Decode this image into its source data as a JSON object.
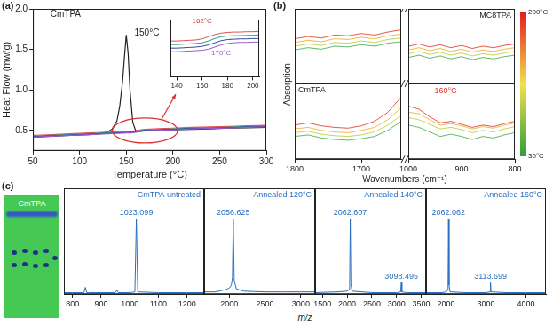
{
  "chart_data": [
    {
      "type": "line",
      "xlabel": "Temperature (°C)",
      "ylabel": "Heat Flow (mw/g)",
      "x": [
        50,
        60,
        70,
        80,
        90,
        100,
        110,
        120,
        125,
        130,
        135,
        140,
        143,
        146,
        148,
        150,
        152,
        154,
        157,
        160,
        165,
        170,
        180,
        190,
        200,
        220,
        240,
        260,
        280,
        300
      ],
      "series": [
        {
          "color": "#9b59d0",
          "values": [
            0.42,
            0.425,
            0.43,
            0.435,
            0.44,
            0.445,
            0.45,
            0.455,
            0.458,
            0.46,
            0.462,
            0.465,
            0.467,
            0.468,
            0.469,
            0.47,
            0.471,
            0.472,
            0.474,
            0.478,
            0.488,
            0.495,
            0.5,
            0.505,
            0.51,
            0.52,
            0.525,
            0.53,
            0.54,
            0.545
          ]
        },
        {
          "color": "#2b4c9b",
          "values": [
            0.425,
            0.43,
            0.435,
            0.44,
            0.445,
            0.45,
            0.455,
            0.46,
            0.463,
            0.465,
            0.467,
            0.47,
            0.472,
            0.473,
            0.474,
            0.475,
            0.476,
            0.477,
            0.479,
            0.483,
            0.493,
            0.5,
            0.505,
            0.51,
            0.515,
            0.525,
            0.53,
            0.535,
            0.545,
            0.55
          ]
        },
        {
          "color": "#2a9d8f",
          "values": [
            0.43,
            0.435,
            0.44,
            0.445,
            0.45,
            0.455,
            0.46,
            0.465,
            0.468,
            0.47,
            0.472,
            0.475,
            0.477,
            0.478,
            0.479,
            0.48,
            0.481,
            0.482,
            0.484,
            0.488,
            0.498,
            0.505,
            0.51,
            0.515,
            0.52,
            0.53,
            0.535,
            0.54,
            0.55,
            0.555
          ]
        },
        {
          "color": "#e05050",
          "values": [
            0.44,
            0.445,
            0.45,
            0.455,
            0.46,
            0.465,
            0.47,
            0.475,
            0.478,
            0.48,
            0.482,
            0.485,
            0.487,
            0.488,
            0.489,
            0.49,
            0.491,
            0.492,
            0.494,
            0.498,
            0.508,
            0.515,
            0.52,
            0.525,
            0.53,
            0.54,
            0.545,
            0.55,
            0.56,
            0.565
          ]
        },
        {
          "color": "#222222",
          "values": [
            0.42,
            0.425,
            0.43,
            0.435,
            0.44,
            0.445,
            0.45,
            0.46,
            0.47,
            0.48,
            0.52,
            0.62,
            0.8,
            1.1,
            1.4,
            1.68,
            1.45,
            1.0,
            0.6,
            0.5,
            0.49,
            0.5,
            0.5,
            0.505,
            0.51,
            0.515,
            0.52,
            0.53,
            0.535,
            0.54
          ]
        }
      ],
      "xlim": [
        50,
        300
      ],
      "xticks": [
        50,
        100,
        150,
        200,
        250,
        300
      ],
      "ylim": [
        0.25,
        2.0
      ],
      "yticks": [
        0.5,
        {
          "value": 1,
          "label": "1.0"
        },
        1.5,
        {
          "value": 2,
          "label": "2.0"
        }
      ],
      "annotations": [
        {
          "text": "CmTPA",
          "x": 85,
          "y": 1.85
        },
        {
          "text": "150°C",
          "x": 172,
          "y": 1.62
        }
      ]
    },
    {
      "type": "line",
      "x": [
        135,
        140,
        145,
        150,
        155,
        160,
        165,
        170,
        175,
        180,
        185,
        190,
        195,
        200,
        205
      ],
      "series": [
        {
          "color": "#e05050",
          "values": [
            0.52,
            0.52,
            0.521,
            0.522,
            0.523,
            0.526,
            0.532,
            0.538,
            0.542,
            0.544,
            0.545,
            0.545,
            0.546,
            0.546,
            0.547
          ]
        },
        {
          "color": "#2a9d8f",
          "values": [
            0.51,
            0.51,
            0.511,
            0.512,
            0.513,
            0.515,
            0.52,
            0.527,
            0.532,
            0.534,
            0.535,
            0.535,
            0.536,
            0.536,
            0.537
          ]
        },
        {
          "color": "#2b4c9b",
          "values": [
            0.5,
            0.5,
            0.501,
            0.502,
            0.503,
            0.505,
            0.509,
            0.515,
            0.521,
            0.524,
            0.525,
            0.526,
            0.526,
            0.527,
            0.527
          ]
        },
        {
          "color": "#9b59d0",
          "values": [
            0.49,
            0.49,
            0.491,
            0.492,
            0.493,
            0.494,
            0.497,
            0.503,
            0.509,
            0.513,
            0.515,
            0.516,
            0.516,
            0.517,
            0.517
          ]
        }
      ],
      "xlim": [
        135,
        205
      ],
      "xticks": [
        140,
        160,
        180,
        200
      ],
      "ylim": [
        0.42,
        0.58
      ],
      "tick_labels": "x",
      "annotations": [
        {
          "text": "162°C",
          "x": 160,
          "y": 0.56,
          "color": "#e03030"
        },
        {
          "text": "170°C",
          "x": 175,
          "y": 0.47,
          "color": "#9b59d0"
        }
      ]
    },
    {
      "type": "line",
      "x": [
        1800,
        1780,
        1760,
        1740,
        1720,
        1700,
        1680,
        1660,
        1640
      ],
      "series": [
        {
          "color": "#3aa845",
          "values": [
            0.45,
            0.48,
            0.46,
            0.5,
            0.49,
            0.52,
            0.5,
            0.54,
            0.56
          ]
        },
        {
          "color": "#b5cc2e",
          "values": [
            0.5,
            0.53,
            0.51,
            0.55,
            0.54,
            0.57,
            0.55,
            0.59,
            0.61
          ]
        },
        {
          "color": "#f2a81d",
          "values": [
            0.55,
            0.58,
            0.56,
            0.6,
            0.59,
            0.62,
            0.6,
            0.64,
            0.66
          ]
        },
        {
          "color": "#e0301e",
          "values": [
            0.6,
            0.63,
            0.61,
            0.65,
            0.64,
            0.67,
            0.65,
            0.69,
            0.72
          ]
        }
      ],
      "xlim": [
        1800,
        1640
      ],
      "ylim": [
        0,
        1
      ],
      "tick_labels": false
    },
    {
      "type": "line",
      "title": "MC8TPA",
      "x": [
        1000,
        980,
        960,
        940,
        920,
        900,
        880,
        860,
        840,
        820,
        800
      ],
      "series": [
        {
          "color": "#3aa845",
          "values": [
            0.35,
            0.38,
            0.34,
            0.37,
            0.33,
            0.36,
            0.32,
            0.35,
            0.33,
            0.36,
            0.38
          ]
        },
        {
          "color": "#b5cc2e",
          "values": [
            0.4,
            0.43,
            0.39,
            0.42,
            0.38,
            0.41,
            0.37,
            0.4,
            0.38,
            0.41,
            0.43
          ]
        },
        {
          "color": "#f2a81d",
          "values": [
            0.45,
            0.48,
            0.44,
            0.47,
            0.43,
            0.46,
            0.42,
            0.45,
            0.43,
            0.46,
            0.48
          ]
        },
        {
          "color": "#e0301e",
          "values": [
            0.5,
            0.53,
            0.49,
            0.52,
            0.48,
            0.51,
            0.47,
            0.5,
            0.48,
            0.51,
            0.53
          ]
        }
      ],
      "xlim": [
        1000,
        800
      ],
      "ylim": [
        0,
        1
      ],
      "tick_labels": false
    },
    {
      "type": "line",
      "title": "CmTPA",
      "x": [
        1800,
        1780,
        1760,
        1740,
        1720,
        1700,
        1680,
        1660,
        1640
      ],
      "series": [
        {
          "color": "#3aa845",
          "values": [
            0.3,
            0.32,
            0.28,
            0.26,
            0.25,
            0.27,
            0.3,
            0.38,
            0.5
          ]
        },
        {
          "color": "#b5cc2e",
          "values": [
            0.35,
            0.37,
            0.33,
            0.31,
            0.3,
            0.32,
            0.36,
            0.45,
            0.58
          ]
        },
        {
          "color": "#f2a81d",
          "values": [
            0.4,
            0.42,
            0.38,
            0.36,
            0.35,
            0.38,
            0.42,
            0.52,
            0.68
          ]
        },
        {
          "color": "#e0301e",
          "values": [
            0.45,
            0.48,
            0.44,
            0.42,
            0.41,
            0.44,
            0.5,
            0.62,
            0.82
          ]
        }
      ],
      "xlim": [
        1800,
        1640
      ],
      "xticks": [
        1800,
        1700
      ],
      "ylim": [
        0,
        1
      ],
      "tick_labels": "x"
    },
    {
      "type": "line",
      "x": [
        1000,
        980,
        960,
        940,
        920,
        900,
        880,
        860,
        840,
        820,
        800
      ],
      "series": [
        {
          "color": "#3aa845",
          "values": [
            0.45,
            0.42,
            0.36,
            0.3,
            0.33,
            0.3,
            0.26,
            0.3,
            0.28,
            0.32,
            0.35
          ]
        },
        {
          "color": "#b5cc2e",
          "values": [
            0.55,
            0.52,
            0.46,
            0.4,
            0.42,
            0.39,
            0.35,
            0.38,
            0.36,
            0.4,
            0.43
          ]
        },
        {
          "color": "#f2a81d",
          "values": [
            0.62,
            0.6,
            0.52,
            0.45,
            0.47,
            0.44,
            0.4,
            0.43,
            0.41,
            0.45,
            0.48
          ]
        },
        {
          "color": "#e0301e",
          "values": [
            0.7,
            0.66,
            0.56,
            0.48,
            0.5,
            0.46,
            0.42,
            0.45,
            0.43,
            0.47,
            0.5
          ]
        }
      ],
      "xlim": [
        1000,
        800
      ],
      "xticks": [
        1000,
        900,
        800
      ],
      "ylim": [
        0,
        1
      ],
      "tick_labels": "x",
      "annotations": [
        {
          "text": "160°C",
          "x": 930,
          "y": 0.82,
          "color": "#e03030"
        }
      ]
    },
    {
      "type": "line",
      "title": "CmTPA untreated",
      "color": "#2a6fc0",
      "x": [
        770,
        800,
        840,
        845,
        850,
        855,
        900,
        950,
        955,
        960,
        1000,
        1018,
        1023.099,
        1028,
        1100,
        1200,
        1260
      ],
      "values": [
        2,
        2,
        2,
        9,
        2,
        2,
        2,
        2,
        5,
        2,
        2,
        3,
        100,
        3,
        2,
        2,
        2
      ],
      "xlim": [
        770,
        1260
      ],
      "xticks": [
        800,
        900,
        1000,
        1100,
        1200
      ],
      "ylim": [
        0,
        140
      ],
      "tick_labels": "x",
      "annotations": [
        {
          "text": "1023.099",
          "x": 1023.099,
          "y": 100
        }
      ]
    },
    {
      "type": "line",
      "title": "Annealed 120°C",
      "color": "#2a6fc0",
      "x": [
        1650,
        1800,
        1900,
        1950,
        2000,
        2030,
        2045,
        2056.625,
        2070,
        2100,
        2200,
        2500,
        2800,
        3000,
        3200
      ],
      "values": [
        3,
        3,
        5,
        6,
        8,
        12,
        22,
        100,
        18,
        7,
        4,
        3,
        3,
        3,
        3
      ],
      "xlim": [
        1650,
        3200
      ],
      "xticks": [
        2000,
        2500,
        3000
      ],
      "ylim": [
        0,
        140
      ],
      "tick_labels": "x",
      "annotations": [
        {
          "text": "2056.625",
          "x": 2056.625,
          "y": 100
        }
      ]
    },
    {
      "type": "line",
      "title": "Annealed 140°C",
      "color": "#2a6fc0",
      "x": [
        1350,
        1800,
        2000,
        2040,
        2050,
        2062.607,
        2075,
        2100,
        2500,
        3000,
        3085,
        3098.495,
        3110,
        3200,
        3600
      ],
      "values": [
        2,
        3,
        4,
        6,
        12,
        100,
        14,
        4,
        2,
        2,
        3,
        16,
        3,
        2,
        2
      ],
      "xlim": [
        1350,
        3600
      ],
      "xticks": [
        1500,
        2000,
        2500,
        3000,
        3500
      ],
      "ylim": [
        0,
        140
      ],
      "tick_labels": "x",
      "annotations": [
        {
          "text": "2062.607",
          "x": 2062.607,
          "y": 100
        },
        {
          "text": "3098.495",
          "x": 3098.495,
          "y": 16
        }
      ]
    },
    {
      "type": "line",
      "title": "Annealed 160°C",
      "color": "#2a6fc0",
      "x": [
        1500,
        1900,
        2000,
        2040,
        2050,
        2062.062,
        2075,
        2100,
        2500,
        3000,
        3100,
        3113.699,
        3125,
        3500,
        4000,
        4500
      ],
      "values": [
        2,
        2,
        3,
        5,
        10,
        100,
        12,
        3,
        2,
        2,
        3,
        15,
        3,
        2,
        2,
        2
      ],
      "xlim": [
        1500,
        4500
      ],
      "xticks": [
        2000,
        3000,
        4000
      ],
      "ylim": [
        0,
        140
      ],
      "tick_labels": "x",
      "annotations": [
        {
          "text": "2062.062",
          "x": 2062.062,
          "y": 100
        },
        {
          "text": "3113.699",
          "x": 3113.699,
          "y": 15
        }
      ]
    }
  ],
  "figure": {
    "panel_labels": [
      "(a)",
      "(b)",
      "(c)"
    ],
    "b": {
      "xlabel": "Wavenumbers (cm⁻¹)",
      "ylabel": "Absorption",
      "colorbar": {
        "range": [
          30,
          200
        ],
        "ticks": [
          {
            "value": 200,
            "label": "200°C"
          },
          {
            "value": 30,
            "label": "30°C"
          }
        ],
        "colors": [
          "#2e9e3e",
          "#f4e04d",
          "#e02020"
        ]
      }
    },
    "c": {
      "xlabel": "m/z",
      "tlc_label": "CmTPA"
    }
  }
}
